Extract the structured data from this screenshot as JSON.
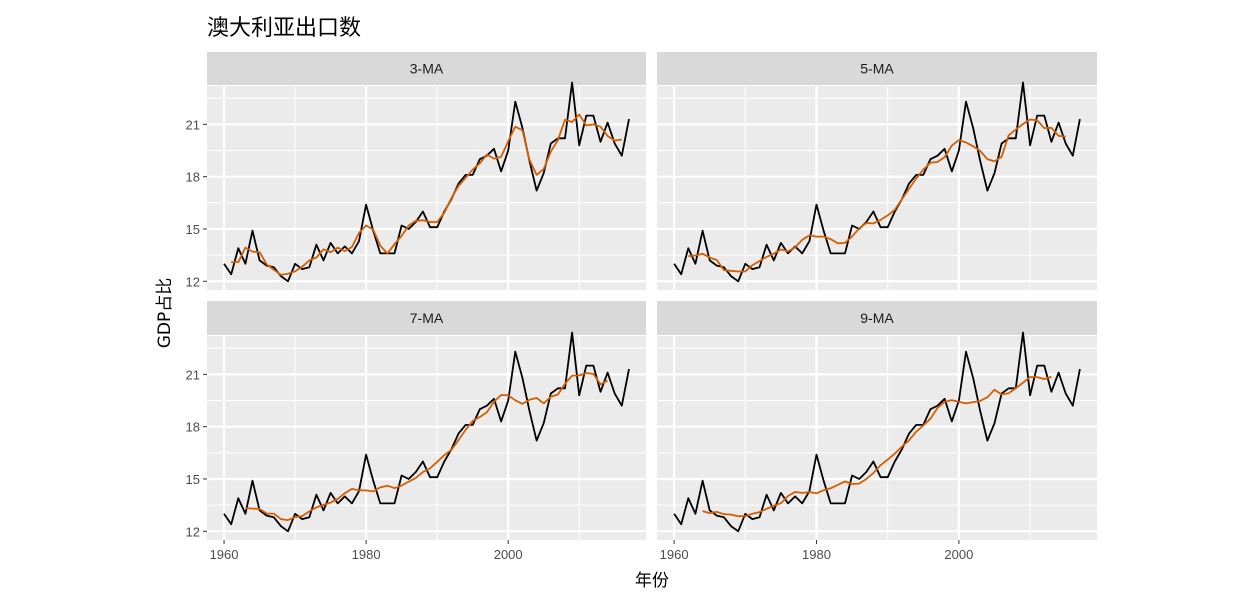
{
  "chart_data": {
    "type": "line",
    "title": "澳大利亚出口数",
    "xlabel": "年份",
    "ylabel": "GDP占比",
    "xlim": [
      1957.6,
      2019.4
    ],
    "ylim": [
      11.5,
      23.2
    ],
    "x_ticks": [
      1960,
      1980,
      2000
    ],
    "y_ticks": [
      12,
      15,
      18,
      21
    ],
    "grid": true,
    "colors": {
      "panel_background": "#ebebeb",
      "strip_background": "#d9d9d9",
      "grid": "#ffffff",
      "data_line": "#000000",
      "ma_line": "#d55e00"
    },
    "years": [
      1960,
      1961,
      1962,
      1963,
      1964,
      1965,
      1966,
      1967,
      1968,
      1969,
      1970,
      1971,
      1972,
      1973,
      1974,
      1975,
      1976,
      1977,
      1978,
      1979,
      1980,
      1981,
      1982,
      1983,
      1984,
      1985,
      1986,
      1987,
      1988,
      1989,
      1990,
      1991,
      1992,
      1993,
      1994,
      1995,
      1996,
      1997,
      1998,
      1999,
      2000,
      2001,
      2002,
      2003,
      2004,
      2005,
      2006,
      2007,
      2008,
      2009,
      2010,
      2011,
      2012,
      2013,
      2014,
      2015,
      2016,
      2017
    ],
    "exports": [
      13.0,
      12.4,
      13.9,
      13.0,
      14.9,
      13.2,
      12.9,
      12.8,
      12.3,
      12.0,
      13.0,
      12.7,
      12.8,
      14.1,
      13.2,
      14.2,
      13.6,
      14.0,
      13.6,
      14.3,
      16.4,
      14.9,
      13.6,
      13.6,
      13.6,
      15.2,
      15.0,
      15.4,
      16.0,
      15.1,
      15.1,
      16.0,
      16.7,
      17.6,
      18.1,
      18.1,
      19.0,
      19.2,
      19.6,
      18.3,
      19.5,
      22.3,
      20.8,
      18.9,
      17.2,
      18.2,
      19.9,
      20.2,
      20.2,
      23.4,
      19.8,
      21.5,
      21.5,
      20.0,
      21.1,
      19.9,
      19.2,
      21.3
    ],
    "panels": [
      {
        "name": "3-MA",
        "window": 3
      },
      {
        "name": "5-MA",
        "window": 5
      },
      {
        "name": "7-MA",
        "window": 7
      },
      {
        "name": "9-MA",
        "window": 9
      }
    ]
  }
}
